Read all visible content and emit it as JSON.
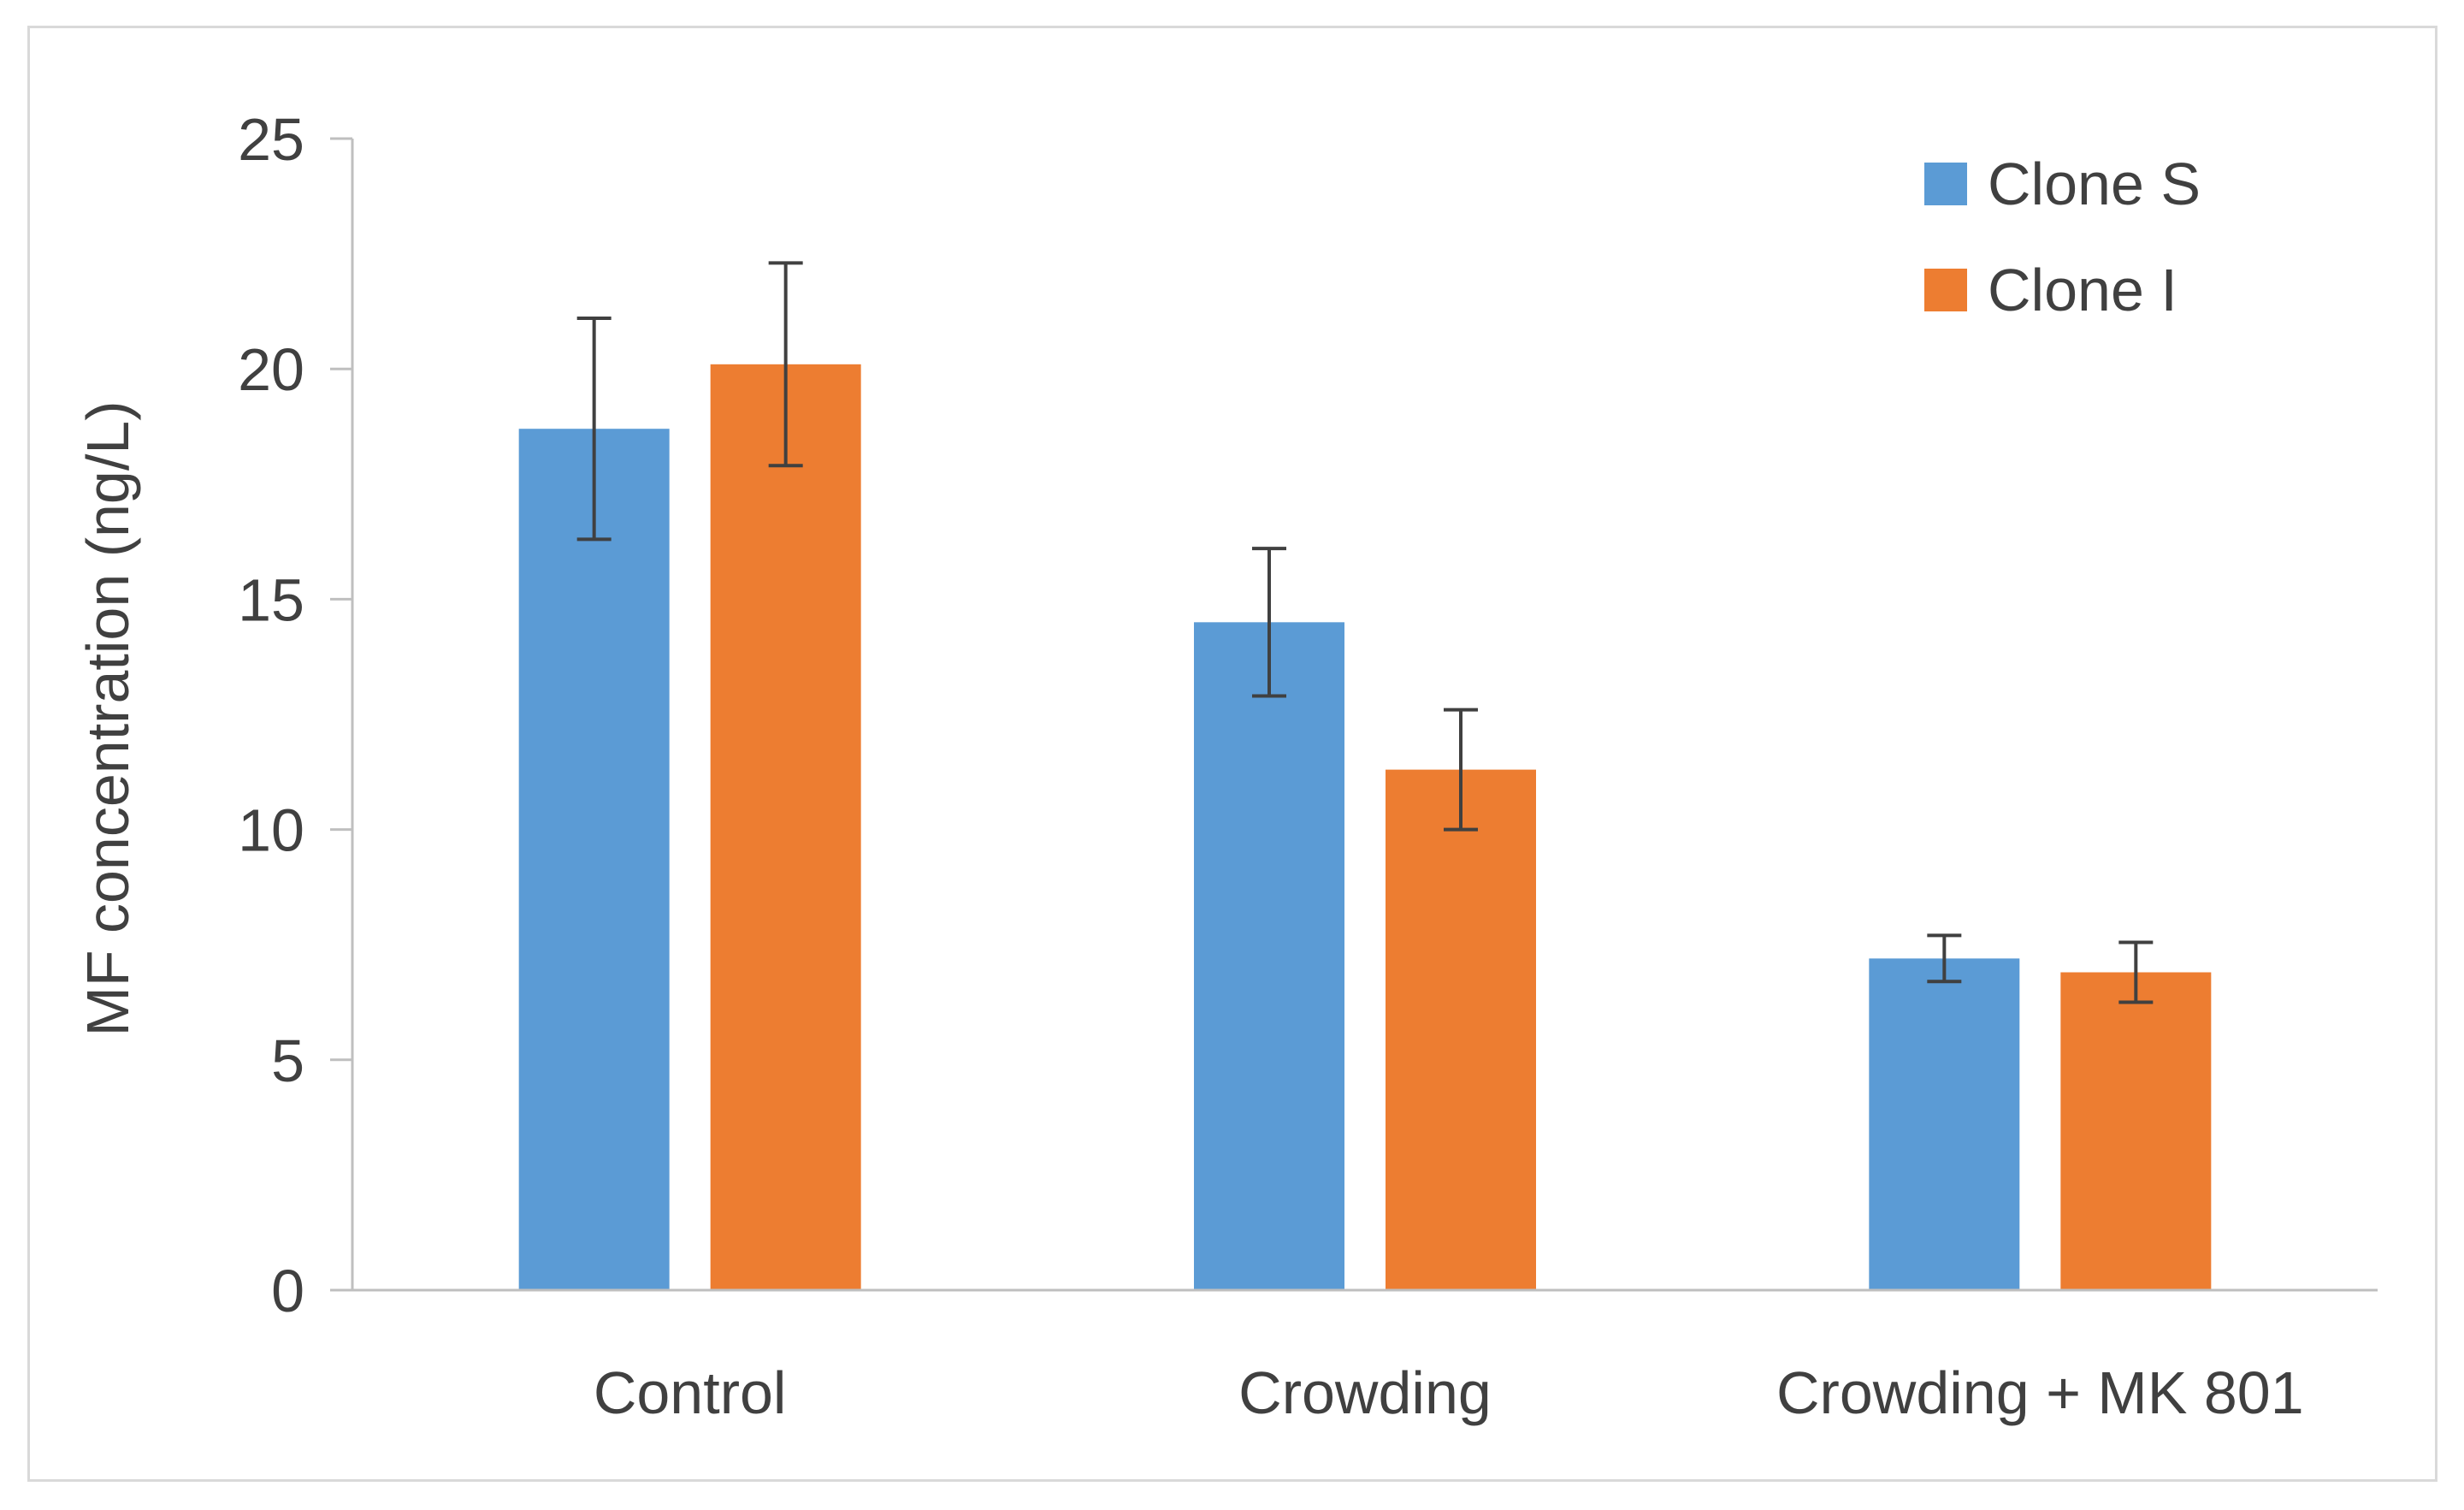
{
  "chart_data": {
    "type": "bar",
    "title": "",
    "xlabel": "",
    "ylabel": "MF concentration (ng/L)",
    "ylim": [
      0,
      25
    ],
    "yticks": [
      "0",
      "5",
      "10",
      "15",
      "20",
      "25"
    ],
    "categories": [
      "Control",
      "Crowding",
      "Crowding + MK 801"
    ],
    "grid": false,
    "legend_position": "top-right",
    "series": [
      {
        "name": "Clone S",
        "color": "#5b9bd5",
        "values": [
          18.7,
          14.5,
          7.2
        ],
        "error": [
          2.4,
          1.6,
          0.5
        ]
      },
      {
        "name": "Clone I",
        "color": "#ed7d31",
        "values": [
          20.1,
          11.3,
          6.9
        ],
        "error": [
          2.2,
          1.3,
          0.65
        ]
      }
    ]
  }
}
